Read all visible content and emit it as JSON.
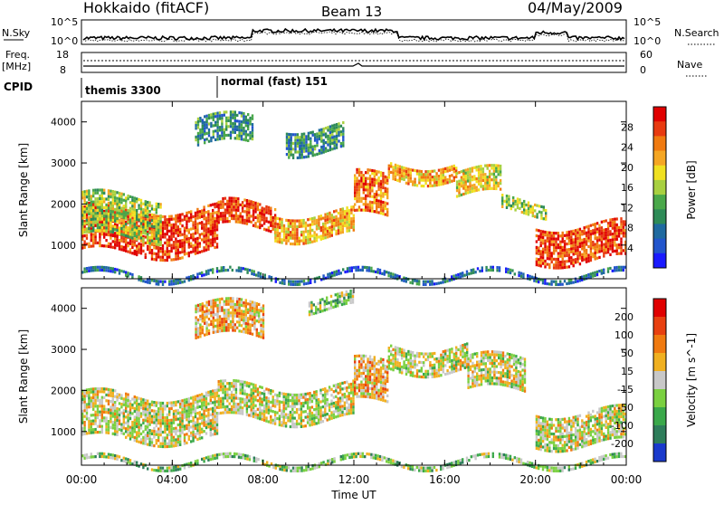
{
  "header": {
    "station": "Hokkaido (fitACF)",
    "beam": "Beam 13",
    "date": "04/May/2009"
  },
  "summary_panels": {
    "nsky_label": "N.Sky",
    "nsky_ticks": [
      "10^5",
      "10^0"
    ],
    "nsearch_label": "N.Search",
    "nsearch_ticks": [
      "10^5",
      "10^0"
    ],
    "freq_label": "Freq.",
    "freq_unit": "[MHz]",
    "freq_ticks": [
      "18",
      "8"
    ],
    "nave_label": "Nave",
    "nave_ticks": [
      "60",
      "0"
    ],
    "cpid_label": "CPID",
    "cpid_segments": [
      {
        "label": "themis 3300",
        "start_hour": 0
      },
      {
        "label": "normal (fast) 151",
        "start_hour": 6.0
      }
    ]
  },
  "chart_data": [
    {
      "type": "heatmap",
      "name": "power",
      "ylabel": "Slant Range [km]",
      "ylim": [
        180,
        4500
      ],
      "yticks": [
        1000,
        2000,
        3000,
        4000
      ],
      "xlim": [
        0,
        24
      ],
      "colorbar": {
        "label": "Power [dB]",
        "ticks": [
          "4",
          "8",
          "12",
          "16",
          "20",
          "24",
          "28"
        ],
        "colors": [
          "#1a1aff",
          "#2255cc",
          "#1f6aa0",
          "#2e8b57",
          "#4aa84a",
          "#a8d040",
          "#f0e020",
          "#f5a623",
          "#f07a10",
          "#e83a10",
          "#e00000"
        ]
      },
      "bands": [
        {
          "t0": 0.0,
          "t1": 6.0,
          "r0": 800,
          "r1": 1900,
          "level": 9
        },
        {
          "t0": 0.0,
          "t1": 3.5,
          "r0": 1200,
          "r1": 2200,
          "level": 5
        },
        {
          "t0": 6.0,
          "t1": 8.5,
          "r0": 1400,
          "r1": 2000,
          "level": 9
        },
        {
          "t0": 8.5,
          "t1": 12.0,
          "r0": 1200,
          "r1": 1800,
          "level": 7
        },
        {
          "t0": 12.0,
          "t1": 13.5,
          "r0": 1700,
          "r1": 2700,
          "level": 8
        },
        {
          "t0": 13.5,
          "t1": 16.5,
          "r0": 2600,
          "r1": 3000,
          "level": 7
        },
        {
          "t0": 16.5,
          "t1": 18.5,
          "r0": 2200,
          "r1": 2800,
          "level": 6
        },
        {
          "t0": 18.5,
          "t1": 20.5,
          "r0": 1800,
          "r1": 2100,
          "level": 5
        },
        {
          "t0": 20.0,
          "t1": 24.0,
          "r0": 600,
          "r1": 1500,
          "level": 9
        },
        {
          "t0": 5.0,
          "t1": 7.5,
          "r0": 3400,
          "r1": 4100,
          "level": 3
        },
        {
          "t0": 9.0,
          "t1": 11.5,
          "r0": 3300,
          "r1": 3900,
          "level": 3
        },
        {
          "t0": 0.0,
          "t1": 24.0,
          "r0": 200,
          "r1": 320,
          "level": 2
        }
      ]
    },
    {
      "type": "heatmap",
      "name": "velocity",
      "ylabel": "Slant Range [km]",
      "xlabel": "Time UT",
      "ylim": [
        180,
        4500
      ],
      "yticks": [
        1000,
        2000,
        3000,
        4000
      ],
      "xlim": [
        0,
        24
      ],
      "xticks": [
        "00:00",
        "04:00",
        "08:00",
        "12:00",
        "16:00",
        "20:00",
        "00:00"
      ],
      "colorbar": {
        "label": "Velocity [m s^-1]",
        "ticks": [
          "200",
          "100",
          "50",
          "15",
          "-15",
          "-50",
          "-100",
          "-200"
        ],
        "colors": [
          "#1a3acc",
          "#2e7d5a",
          "#3aa84a",
          "#7ad040",
          "#c8c8c8",
          "#f0b020",
          "#f07a10",
          "#e84010",
          "#e00000"
        ]
      },
      "bands": [
        {
          "t0": 0.0,
          "t1": 6.0,
          "r0": 800,
          "r1": 1900,
          "level": 4
        },
        {
          "t0": 6.0,
          "t1": 12.0,
          "r0": 1300,
          "r1": 2100,
          "level": 4
        },
        {
          "t0": 12.0,
          "t1": 13.5,
          "r0": 1700,
          "r1": 2700,
          "level": 5
        },
        {
          "t0": 13.5,
          "t1": 17.0,
          "r0": 2500,
          "r1": 3100,
          "level": 4
        },
        {
          "t0": 17.0,
          "t1": 19.5,
          "r0": 2000,
          "r1": 2800,
          "level": 4
        },
        {
          "t0": 20.0,
          "t1": 24.0,
          "r0": 700,
          "r1": 1500,
          "level": 4
        },
        {
          "t0": 5.0,
          "t1": 8.0,
          "r0": 3300,
          "r1": 4100,
          "level": 5
        },
        {
          "t0": 10.0,
          "t1": 12.0,
          "r0": 4000,
          "r1": 4300,
          "level": 3
        },
        {
          "t0": 0.0,
          "t1": 24.0,
          "r0": 200,
          "r1": 320,
          "level": 3
        }
      ]
    }
  ]
}
